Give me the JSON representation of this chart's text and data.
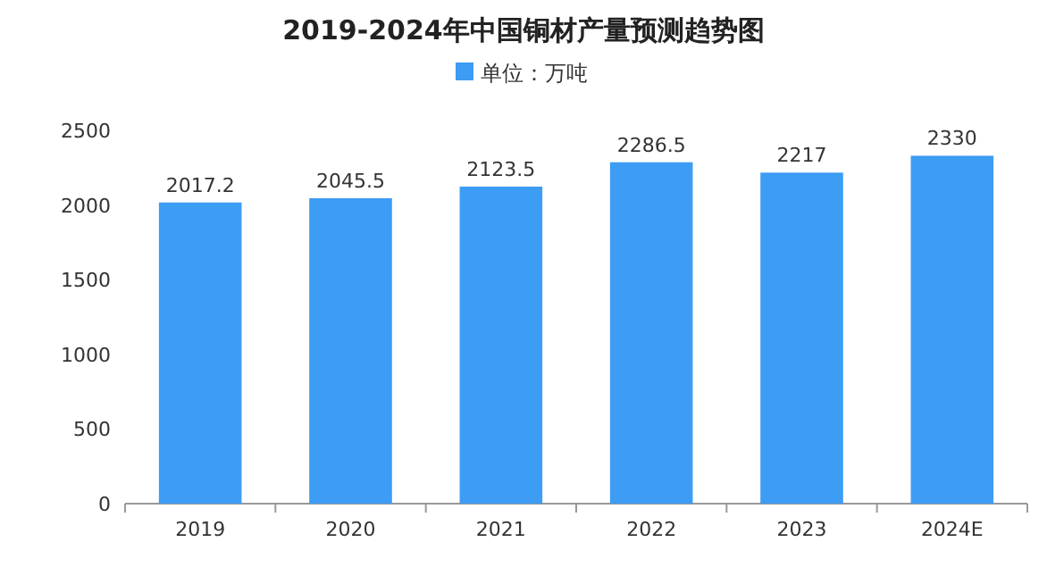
{
  "chart_data": {
    "type": "bar",
    "title": "2019-2024年中国铜材产量预测趋势图",
    "categories": [
      "2019",
      "2020",
      "2021",
      "2022",
      "2023",
      "2024E"
    ],
    "series": [
      {
        "name": "单位：万吨",
        "color": "#3d9cf4",
        "values": [
          2017.2,
          2045.5,
          2123.5,
          2286.5,
          2217,
          2330
        ]
      }
    ],
    "ylim": [
      0,
      2500
    ],
    "yticks": [
      0,
      500,
      1000,
      1500,
      2000,
      2500
    ],
    "data_labels": true,
    "legend": "top",
    "grid": false
  }
}
